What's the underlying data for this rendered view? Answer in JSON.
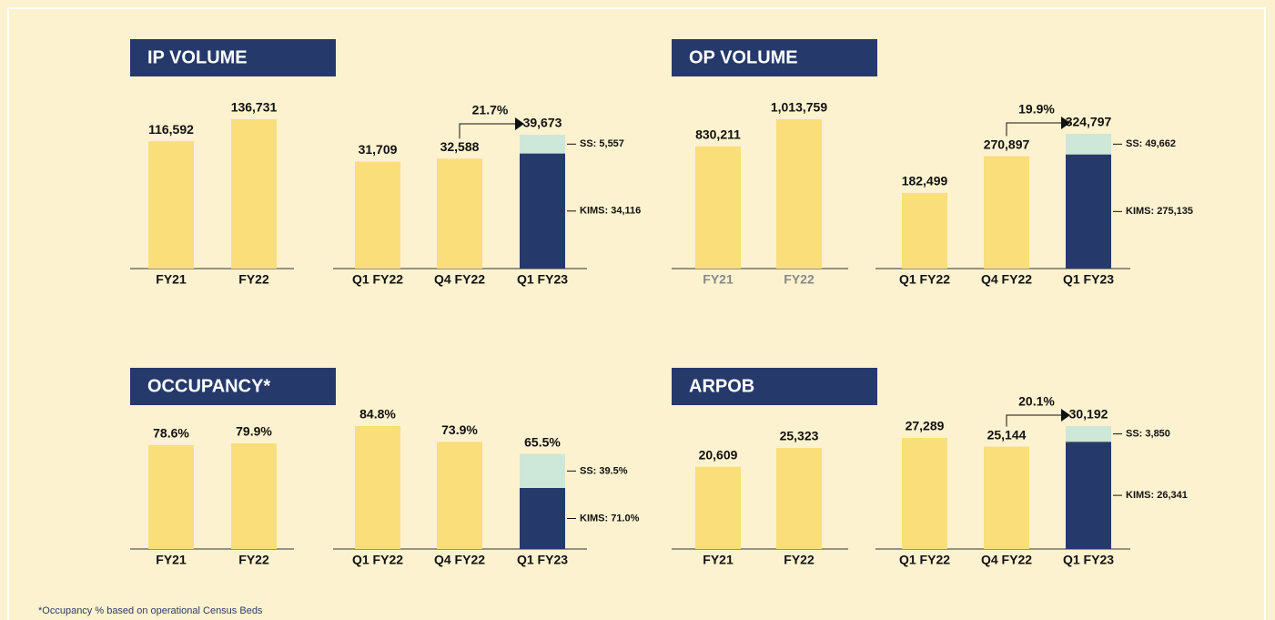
{
  "chart_data": [
    {
      "type": "bar",
      "title": "IP VOLUME",
      "annual": {
        "categories": [
          "FY21",
          "FY22"
        ],
        "values": [
          116592,
          136731
        ],
        "value_labels": [
          "116,592",
          "136,731"
        ]
      },
      "quarterly": {
        "categories": [
          "Q1 FY22",
          "Q4 FY22",
          "Q1 FY23"
        ],
        "values": [
          31709,
          32588,
          39673
        ],
        "value_labels": [
          "31,709",
          "32,588",
          "39,673"
        ],
        "stack": [
          {
            "name": "KIMS",
            "value": 34116,
            "label": "KIMS: 34,116",
            "color": "#253a6b"
          },
          {
            "name": "SS",
            "value": 5557,
            "label": "SS: 5,557",
            "color": "#cde7d8"
          }
        ],
        "growth": {
          "value": 21.7,
          "label": "21.7%"
        }
      },
      "color": "#f9de7a"
    },
    {
      "type": "bar",
      "title": "OP VOLUME",
      "annual": {
        "categories": [
          "FY21",
          "FY22"
        ],
        "values": [
          830211,
          1013759
        ],
        "value_labels": [
          "830,211",
          "1,013,759"
        ]
      },
      "quarterly": {
        "categories": [
          "Q1 FY22",
          "Q4 FY22",
          "Q1 FY23"
        ],
        "values": [
          182499,
          270897,
          324797
        ],
        "value_labels": [
          "182,499",
          "270,897",
          "324,797"
        ],
        "stack": [
          {
            "name": "KIMS",
            "value": 275135,
            "label": "KIMS: 275,135",
            "color": "#253a6b"
          },
          {
            "name": "SS",
            "value": 49662,
            "label": "SS: 49,662",
            "color": "#cde7d8"
          }
        ],
        "growth": {
          "value": 19.9,
          "label": "19.9%"
        }
      },
      "color": "#f9de7a"
    },
    {
      "type": "bar",
      "title": "OCCUPANCY*",
      "annual": {
        "categories": [
          "FY21",
          "FY22"
        ],
        "values": [
          78.6,
          79.9
        ],
        "value_labels": [
          "78.6%",
          "79.9%"
        ]
      },
      "quarterly": {
        "categories": [
          "Q1 FY22",
          "Q4 FY22",
          "Q1 FY23"
        ],
        "values": [
          84.8,
          73.9,
          65.5
        ],
        "value_labels": [
          "84.8%",
          "73.9%",
          "65.5%"
        ],
        "stack": [
          {
            "name": "KIMS",
            "value": 71.0,
            "label": "KIMS: 71.0%",
            "color": "#253a6b"
          },
          {
            "name": "SS",
            "value": 39.5,
            "label": "SS: 39.5%",
            "color": "#cde7d8"
          }
        ]
      },
      "color": "#f9de7a"
    },
    {
      "type": "bar",
      "title": "ARPOB",
      "annual": {
        "categories": [
          "FY21",
          "FY22"
        ],
        "values": [
          20609,
          25323
        ],
        "value_labels": [
          "20,609",
          "25,323"
        ]
      },
      "quarterly": {
        "categories": [
          "Q1 FY22",
          "Q4 FY22",
          "Q1 FY23"
        ],
        "values": [
          27289,
          25144,
          30192
        ],
        "value_labels": [
          "27,289",
          "25,144",
          "30,192"
        ],
        "stack": [
          {
            "name": "KIMS",
            "value": 26341,
            "label": "KIMS: 26,341",
            "color": "#253a6b"
          },
          {
            "name": "SS",
            "value": 3850,
            "label": "SS: 3,850",
            "color": "#cde7d8"
          }
        ],
        "growth": {
          "value": 20.1,
          "label": "20.1%"
        }
      },
      "color": "#f9de7a"
    }
  ],
  "footnote": "*Occupancy % based on operational Census Beds"
}
